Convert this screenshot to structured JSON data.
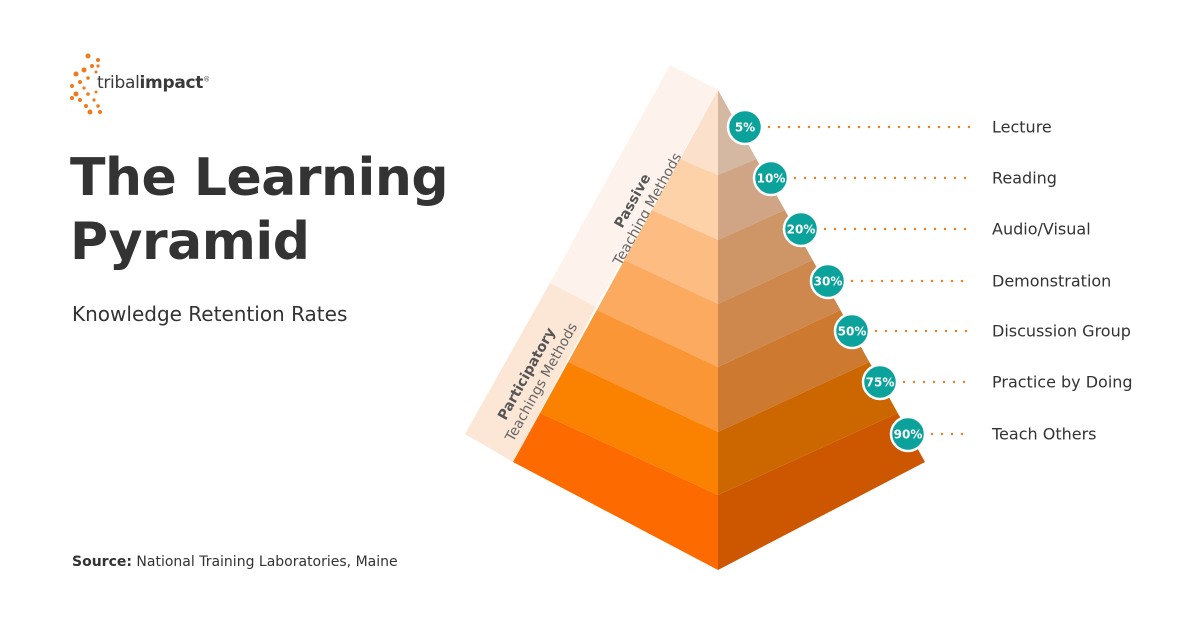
{
  "logo": {
    "text_light": "tribal",
    "text_bold": "impact",
    "mark": "®"
  },
  "title": "The Learning Pyramid",
  "subtitle": "Knowledge Retention Rates",
  "source": {
    "label": "Source:",
    "text": "National Training Laboratories, Maine"
  },
  "bands": {
    "passive": {
      "bold": "Passive",
      "light": "Teaching Methods"
    },
    "participatory": {
      "bold": "Participatory",
      "light": "Teachings Methods"
    }
  },
  "levels": [
    {
      "label": "Lecture",
      "rate": "5%"
    },
    {
      "label": "Reading",
      "rate": "10%"
    },
    {
      "label": "Audio/Visual",
      "rate": "20%"
    },
    {
      "label": "Demonstration",
      "rate": "30%"
    },
    {
      "label": "Discussion Group",
      "rate": "50%"
    },
    {
      "label": "Practice by Doing",
      "rate": "75%"
    },
    {
      "label": "Teach Others",
      "rate": "90%"
    }
  ],
  "colors": {
    "accent": "#f07a1a",
    "badge": "#0aa29a",
    "left_faces": [
      "#fbe1cb",
      "#fdd2a9",
      "#fcbc82",
      "#fbaa5f",
      "#fa9636",
      "#fb8200",
      "#fd6a00"
    ],
    "right_faces": [
      "#d5b8a2",
      "#d0a585",
      "#ce9567",
      "#ce884d",
      "#cd7a30",
      "#cc6700",
      "#cd5600"
    ]
  }
}
